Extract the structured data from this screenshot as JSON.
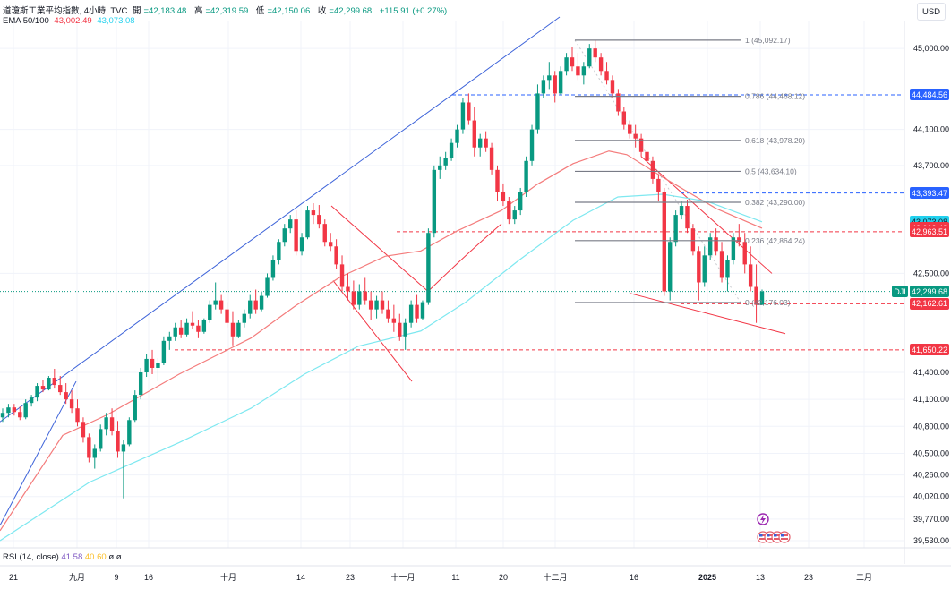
{
  "header": {
    "symbol_line": "道瓊斯工業平均指數, 4小時, TVC",
    "open_label": "開",
    "open": "=42,183.48",
    "high_label": "高",
    "high": "=42,319.59",
    "low_label": "低",
    "low": "=42,150.06",
    "close_label": "收",
    "close": "=42,299.68",
    "change": "+115.91 (+0.27%)",
    "ema_label": "EMA 50/100",
    "ema_50": "43,002.49",
    "ema_100": "43,073.08"
  },
  "currency": "USD",
  "rsi": {
    "label": "RSI (14, close)",
    "v1": "41.58",
    "v2": "40.60",
    "v3": "ø",
    "v4": "ø"
  },
  "colors": {
    "up": "#089981",
    "down": "#f23645",
    "ema_50": "#f47c7c",
    "ema_100": "#7ee8f0",
    "trend_blue": "#3d63d9",
    "channel_red": "#f23645",
    "fib": "#787b86"
  },
  "price_axis": {
    "ticks": [
      "45,000.00",
      "44,100.00",
      "43,700.00",
      "42,500.00",
      "41,400.00",
      "41,100.00",
      "40,800.00",
      "40,500.00",
      "40,260.00",
      "40,020.00",
      "39,770.00",
      "39,530.00"
    ],
    "labels": [
      {
        "text": "44,484.56",
        "color": "#2962ff"
      },
      {
        "text": "43,393.47",
        "color": "#2962ff"
      },
      {
        "text": "43,073.08",
        "color": "#22d1ee"
      },
      {
        "text": "43,002.49",
        "color": "#f23645"
      },
      {
        "text": "42,963.51",
        "color": "#f23645"
      },
      {
        "text": "42,299.68",
        "color": "#089981"
      },
      {
        "text": "42,162.61",
        "color": "#f23645"
      },
      {
        "text": "41,650.22",
        "color": "#f23645"
      }
    ],
    "symbol_tag": "DJI"
  },
  "time_axis": [
    "21",
    "九月",
    "9",
    "16",
    "十月",
    "14",
    "23",
    "十一月",
    "11",
    "20",
    "十二月",
    "16",
    "2025",
    "13",
    "23",
    "二月"
  ],
  "fib_levels": [
    {
      "text": "1 (45,092.17)"
    },
    {
      "text": "0.786 (44,468.12)"
    },
    {
      "text": "0.618 (43,978.20)"
    },
    {
      "text": "0.5 (43,634.10)"
    },
    {
      "text": "0.382 (43,290.00)"
    },
    {
      "text": "0.236 (42,864.24)"
    },
    {
      "text": "0 (42,176.03)"
    }
  ],
  "chart_data": {
    "type": "candlestick",
    "title": "道瓊斯工業平均指數, 4小時, TVC",
    "interval": "4小時",
    "ylim": [
      39450,
      45300
    ],
    "last": {
      "open": 42183.48,
      "high": 42319.59,
      "low": 42150.06,
      "close": 42299.68,
      "change": 115.91,
      "change_pct": 0.27
    },
    "ema": [
      {
        "name": "EMA 50",
        "last": 43002.49,
        "points": [
          [
            0,
            39640
          ],
          [
            70,
            40700
          ],
          [
            120,
            40930
          ],
          [
            200,
            41380
          ],
          [
            280,
            41780
          ],
          [
            330,
            42140
          ],
          [
            380,
            42460
          ],
          [
            430,
            42690
          ],
          [
            470,
            42750
          ],
          [
            510,
            42970
          ],
          [
            560,
            43200
          ],
          [
            600,
            43490
          ],
          [
            640,
            43720
          ],
          [
            680,
            43860
          ],
          [
            700,
            43820
          ],
          [
            740,
            43570
          ],
          [
            800,
            43220
          ],
          [
            851,
            43002
          ]
        ]
      },
      {
        "name": "EMA 100",
        "last": 43073.08,
        "points": [
          [
            0,
            39530
          ],
          [
            100,
            40180
          ],
          [
            200,
            40620
          ],
          [
            280,
            41000
          ],
          [
            340,
            41380
          ],
          [
            400,
            41690
          ],
          [
            470,
            41860
          ],
          [
            520,
            42180
          ],
          [
            580,
            42650
          ],
          [
            640,
            43090
          ],
          [
            690,
            43350
          ],
          [
            740,
            43380
          ],
          [
            790,
            43300
          ],
          [
            851,
            43073
          ]
        ]
      }
    ],
    "ohlc_columns": [
      "open",
      "high",
      "low",
      "close"
    ],
    "candles": [
      [
        40900,
        41000,
        40850,
        40950
      ],
      [
        40950,
        41050,
        40900,
        41010
      ],
      [
        41010,
        41050,
        40920,
        40960
      ],
      [
        40960,
        41020,
        40870,
        40900
      ],
      [
        40900,
        41100,
        40880,
        41060
      ],
      [
        41060,
        41150,
        41020,
        41120
      ],
      [
        41120,
        41280,
        41080,
        41250
      ],
      [
        41250,
        41320,
        41180,
        41210
      ],
      [
        41210,
        41360,
        41200,
        41340
      ],
      [
        41340,
        41440,
        41220,
        41260
      ],
      [
        41260,
        41360,
        41150,
        41180
      ],
      [
        41180,
        41280,
        41050,
        41100
      ],
      [
        41100,
        41200,
        40950,
        41000
      ],
      [
        41000,
        41100,
        40800,
        40850
      ],
      [
        40850,
        40900,
        40620,
        40680
      ],
      [
        40680,
        40720,
        40400,
        40450
      ],
      [
        40450,
        40600,
        40330,
        40550
      ],
      [
        40550,
        40820,
        40520,
        40770
      ],
      [
        40770,
        40950,
        40700,
        40900
      ],
      [
        40900,
        41000,
        40700,
        40750
      ],
      [
        40750,
        40860,
        40450,
        40520
      ],
      [
        40520,
        40650,
        40000,
        40600
      ],
      [
        40600,
        40900,
        40580,
        40870
      ],
      [
        40870,
        41200,
        40850,
        41150
      ],
      [
        41150,
        41450,
        41100,
        41400
      ],
      [
        41400,
        41600,
        41350,
        41550
      ],
      [
        41550,
        41650,
        41380,
        41450
      ],
      [
        41450,
        41560,
        41300,
        41500
      ],
      [
        41500,
        41800,
        41480,
        41750
      ],
      [
        41750,
        41850,
        41650,
        41800
      ],
      [
        41800,
        41950,
        41750,
        41900
      ],
      [
        41900,
        41980,
        41780,
        41820
      ],
      [
        41820,
        42000,
        41800,
        41950
      ],
      [
        41950,
        42080,
        41880,
        41920
      ],
      [
        41920,
        41980,
        41780,
        41850
      ],
      [
        41850,
        42000,
        41830,
        41980
      ],
      [
        41980,
        42200,
        41950,
        42150
      ],
      [
        42150,
        42400,
        42100,
        42200
      ],
      [
        42200,
        42260,
        42050,
        42100
      ],
      [
        42100,
        42180,
        41900,
        41950
      ],
      [
        41950,
        42080,
        41700,
        41800
      ],
      [
        41800,
        41980,
        41780,
        41950
      ],
      [
        41950,
        42100,
        41900,
        42050
      ],
      [
        42050,
        42260,
        42000,
        42200
      ],
      [
        42200,
        42320,
        42050,
        42100
      ],
      [
        42100,
        42300,
        42080,
        42250
      ],
      [
        42250,
        42500,
        42230,
        42450
      ],
      [
        42450,
        42700,
        42420,
        42650
      ],
      [
        42650,
        42880,
        42600,
        42850
      ],
      [
        42850,
        43050,
        42800,
        43000
      ],
      [
        43000,
        43150,
        42950,
        43100
      ],
      [
        43100,
        43200,
        42700,
        42750
      ],
      [
        42750,
        42950,
        42700,
        42900
      ],
      [
        42900,
        43250,
        42880,
        43200
      ],
      [
        43200,
        43280,
        43050,
        43150
      ],
      [
        43150,
        43260,
        43000,
        43050
      ],
      [
        43050,
        43100,
        42800,
        42850
      ],
      [
        42850,
        42950,
        42750,
        42800
      ],
      [
        42800,
        42880,
        42550,
        42600
      ],
      [
        42600,
        42700,
        42300,
        42350
      ],
      [
        42350,
        42500,
        42200,
        42300
      ],
      [
        42300,
        42420,
        42100,
        42150
      ],
      [
        42150,
        42380,
        42100,
        42300
      ],
      [
        42300,
        42450,
        42150,
        42200
      ],
      [
        42200,
        42300,
        41980,
        42100
      ],
      [
        42100,
        42250,
        42000,
        42200
      ],
      [
        42200,
        42300,
        42050,
        42100
      ],
      [
        42100,
        42200,
        41950,
        42000
      ],
      [
        42000,
        42150,
        41850,
        41950
      ],
      [
        41950,
        42050,
        41750,
        41800
      ],
      [
        41800,
        42000,
        41650,
        41950
      ],
      [
        41950,
        42200,
        41900,
        42150
      ],
      [
        42150,
        42260,
        41950,
        42000
      ],
      [
        42000,
        42200,
        41980,
        42180
      ],
      [
        42180,
        43000,
        42150,
        42950
      ],
      [
        42950,
        43700,
        42900,
        43650
      ],
      [
        43650,
        43800,
        43550,
        43700
      ],
      [
        43700,
        43850,
        43650,
        43780
      ],
      [
        43780,
        44000,
        43750,
        43950
      ],
      [
        43950,
        44150,
        43900,
        44100
      ],
      [
        44100,
        44450,
        44050,
        44400
      ],
      [
        44400,
        44500,
        44150,
        44200
      ],
      [
        44200,
        44350,
        43800,
        43900
      ],
      [
        43900,
        44050,
        43800,
        44000
      ],
      [
        44000,
        44080,
        43850,
        43900
      ],
      [
        43900,
        43950,
        43600,
        43650
      ],
      [
        43650,
        43700,
        43300,
        43400
      ],
      [
        43400,
        43500,
        43250,
        43300
      ],
      [
        43300,
        43350,
        43050,
        43100
      ],
      [
        43100,
        43250,
        43050,
        43200
      ],
      [
        43200,
        43450,
        43150,
        43400
      ],
      [
        43400,
        43800,
        43350,
        43750
      ],
      [
        43750,
        44150,
        43700,
        44100
      ],
      [
        44100,
        44600,
        44050,
        44500
      ],
      [
        44500,
        44700,
        44450,
        44650
      ],
      [
        44650,
        44850,
        44550,
        44700
      ],
      [
        44700,
        44750,
        44400,
        44500
      ],
      [
        44500,
        44800,
        44480,
        44750
      ],
      [
        44750,
        44950,
        44700,
        44900
      ],
      [
        44900,
        45020,
        44750,
        44800
      ],
      [
        44800,
        44950,
        44650,
        44700
      ],
      [
        44700,
        44850,
        44600,
        44800
      ],
      [
        44800,
        45050,
        44780,
        45000
      ],
      [
        45000,
        45090,
        44850,
        44900
      ],
      [
        44900,
        44950,
        44700,
        44750
      ],
      [
        44750,
        44850,
        44600,
        44650
      ],
      [
        44650,
        44700,
        44450,
        44500
      ],
      [
        44500,
        44550,
        44250,
        44300
      ],
      [
        44300,
        44350,
        44100,
        44150
      ],
      [
        44150,
        44200,
        44000,
        44050
      ],
      [
        44050,
        44150,
        43900,
        44000
      ],
      [
        44000,
        44050,
        43800,
        43850
      ],
      [
        43850,
        43900,
        43700,
        43750
      ],
      [
        43750,
        43800,
        43500,
        43550
      ],
      [
        43550,
        43600,
        43300,
        43400
      ],
      [
        43400,
        43450,
        42250,
        42300
      ],
      [
        42300,
        42900,
        42200,
        42850
      ],
      [
        42850,
        43200,
        42800,
        43150
      ],
      [
        43150,
        43300,
        43100,
        43250
      ],
      [
        43250,
        43320,
        42950,
        43000
      ],
      [
        43000,
        43050,
        42700,
        42750
      ],
      [
        42750,
        42800,
        42200,
        42400
      ],
      [
        42400,
        42800,
        42350,
        42700
      ],
      [
        42700,
        42950,
        42650,
        42900
      ],
      [
        42900,
        43000,
        42700,
        42750
      ],
      [
        42750,
        42850,
        42400,
        42450
      ],
      [
        42450,
        42700,
        42300,
        42650
      ],
      [
        42650,
        42950,
        42600,
        42900
      ],
      [
        42900,
        43050,
        42800,
        42850
      ],
      [
        42850,
        42950,
        42500,
        42600
      ],
      [
        42600,
        42800,
        42300,
        42350
      ],
      [
        42350,
        42600,
        41950,
        42150
      ],
      [
        42150,
        42320,
        42150,
        42300
      ]
    ],
    "annotations": [
      {
        "type": "trendline",
        "color": "#3d63d9",
        "points": [
          [
            0,
            40850
          ],
          [
            625,
            45350
          ]
        ]
      },
      {
        "type": "trendline",
        "color": "#3d63d9",
        "points": [
          [
            0,
            39700
          ],
          [
            85,
            41300
          ]
        ]
      },
      {
        "type": "channel",
        "color": "#f23645",
        "points": [
          [
            370,
            43250
          ],
          [
            478,
            42300
          ]
        ]
      },
      {
        "type": "channel",
        "color": "#f23645",
        "points": [
          [
            372,
            42420
          ],
          [
            460,
            41300
          ]
        ]
      },
      {
        "type": "channel",
        "color": "#f23645",
        "points": [
          [
            716,
            43800
          ],
          [
            862,
            42500
          ]
        ]
      },
      {
        "type": "channel",
        "color": "#f23645",
        "points": [
          [
            703,
            42280
          ],
          [
            877,
            41830
          ]
        ]
      },
      {
        "type": "curve",
        "color": "#f23645",
        "points": [
          [
            478,
            42300
          ],
          [
            530,
            42800
          ],
          [
            560,
            43050
          ]
        ]
      },
      {
        "type": "hline",
        "color": "#2962ff",
        "style": "dashed",
        "value": 44484.56,
        "from": 505
      },
      {
        "type": "hline",
        "color": "#2962ff",
        "style": "dashed",
        "value": 43393.47,
        "from": 760
      },
      {
        "type": "hline",
        "color": "#f23645",
        "style": "dashed",
        "value": 42963.51,
        "from": 443
      },
      {
        "type": "hline",
        "color": "#f23645",
        "style": "dashed",
        "value": 42162.61,
        "from": 760
      },
      {
        "type": "hline",
        "color": "#f23645",
        "style": "dashed",
        "value": 41650.22,
        "from": 195
      },
      {
        "type": "hline",
        "color": "#089981",
        "style": "dotted",
        "value": 42299.68,
        "from": 0
      }
    ],
    "fib_retracement": {
      "from": 642,
      "to": 827,
      "levels": [
        45092.17,
        44468.12,
        43978.2,
        43634.1,
        43290.0,
        42864.24,
        42176.03
      ]
    }
  }
}
